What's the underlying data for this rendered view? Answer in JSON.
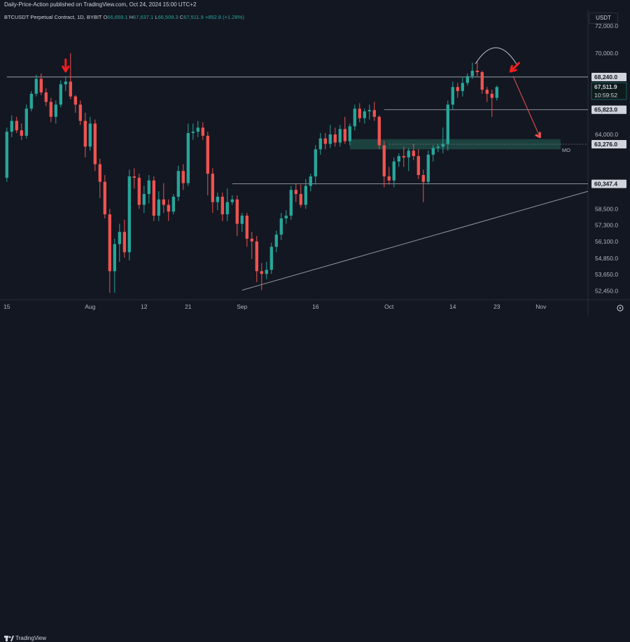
{
  "header": {
    "publisher": "Daily-Price-Action published on TradingView.com, Oct 24, 2024 15:00 UTC+2",
    "symbol": "BTCUSDT Perpetual Contract, 1D, BYBIT",
    "o_label": "O",
    "o_value": "66,659.1",
    "h_label": "H",
    "h_value": "67,637.1",
    "l_label": "L",
    "l_value": "66,509.3",
    "c_label": "C",
    "c_value": "67,511.9",
    "change": "+852.8 (+1.28%)",
    "currency": "USDT"
  },
  "footer": {
    "brand": "TradingView"
  },
  "colors": {
    "bull": "#26a69a",
    "bear": "#ef5350",
    "arrow": "#f21e1e",
    "level": "#b2b5be",
    "zone": "#1e4a44"
  },
  "chart_data": {
    "type": "candlestick",
    "interval": "1D",
    "ylim": [
      51800,
      73200
    ],
    "y_ticks": [
      {
        "value": 72000,
        "label": "72,000.0"
      },
      {
        "value": 70000,
        "label": "70,000.0"
      },
      {
        "value": 64000,
        "label": "64,000.0"
      },
      {
        "value": 58500,
        "label": "58,500.0"
      },
      {
        "value": 57300,
        "label": "57,300.0"
      },
      {
        "value": 56100,
        "label": "56,100.0"
      },
      {
        "value": 54850,
        "label": "54,850.0"
      },
      {
        "value": 53650,
        "label": "53,650.0"
      },
      {
        "value": 52450,
        "label": "52,450.0"
      }
    ],
    "x_ticks": [
      {
        "index": 0,
        "label": "15"
      },
      {
        "index": 17,
        "label": "Aug"
      },
      {
        "index": 28,
        "label": "12"
      },
      {
        "index": 37,
        "label": "21"
      },
      {
        "index": 48,
        "label": "Sep"
      },
      {
        "index": 63,
        "label": "16"
      },
      {
        "index": 78,
        "label": "Oct"
      },
      {
        "index": 91,
        "label": "14"
      },
      {
        "index": 100,
        "label": "23"
      },
      {
        "index": 109,
        "label": "Nov"
      }
    ],
    "x_range": [
      -1.4,
      118.6
    ],
    "candles": [
      [
        60800,
        64500,
        60500,
        64200
      ],
      [
        64200,
        65400,
        63800,
        65000
      ],
      [
        65000,
        65300,
        64100,
        64300
      ],
      [
        64300,
        64800,
        63600,
        63900
      ],
      [
        63900,
        66200,
        63700,
        65900
      ],
      [
        65900,
        67200,
        65700,
        67000
      ],
      [
        67000,
        68400,
        66800,
        68100
      ],
      [
        68100,
        68500,
        66900,
        67100
      ],
      [
        67100,
        67400,
        66100,
        66400
      ],
      [
        66400,
        66700,
        64900,
        65300
      ],
      [
        65300,
        66500,
        64800,
        66200
      ],
      [
        66200,
        68000,
        66000,
        67700
      ],
      [
        67700,
        68300,
        67200,
        67900
      ],
      [
        67900,
        70000,
        66600,
        66800
      ],
      [
        66800,
        66900,
        65600,
        66200
      ],
      [
        66200,
        66500,
        64700,
        65000
      ],
      [
        65000,
        65600,
        62300,
        63100
      ],
      [
        63100,
        65300,
        62800,
        64800
      ],
      [
        64800,
        65100,
        61300,
        61800
      ],
      [
        61800,
        62200,
        59300,
        60500
      ],
      [
        60500,
        61000,
        57800,
        58100
      ],
      [
        58100,
        58500,
        52300,
        53900
      ],
      [
        53900,
        56300,
        52300,
        55900
      ],
      [
        55900,
        57400,
        54600,
        56800
      ],
      [
        56800,
        57700,
        54900,
        55300
      ],
      [
        55300,
        61400,
        54700,
        60900
      ],
      [
        60900,
        61500,
        60000,
        60800
      ],
      [
        60800,
        61100,
        58500,
        58800
      ],
      [
        58800,
        60200,
        58200,
        59600
      ],
      [
        59600,
        61000,
        58900,
        60600
      ],
      [
        60600,
        60900,
        57600,
        58000
      ],
      [
        58000,
        59800,
        57600,
        59200
      ],
      [
        59200,
        60400,
        58200,
        58800
      ],
      [
        58800,
        59200,
        57600,
        58300
      ],
      [
        58300,
        59600,
        58100,
        59400
      ],
      [
        59400,
        61700,
        59100,
        61300
      ],
      [
        61300,
        61800,
        59900,
        60400
      ],
      [
        60400,
        64800,
        60200,
        64100
      ],
      [
        64100,
        64800,
        63600,
        64200
      ],
      [
        64200,
        65000,
        63800,
        64500
      ],
      [
        64500,
        64900,
        63600,
        63900
      ],
      [
        63900,
        64200,
        59500,
        61100
      ],
      [
        61100,
        61500,
        58200,
        59000
      ],
      [
        59000,
        59700,
        58400,
        59400
      ],
      [
        59400,
        59700,
        57600,
        58100
      ],
      [
        58100,
        60000,
        57600,
        59000
      ],
      [
        59000,
        59500,
        58800,
        59200
      ],
      [
        59200,
        59500,
        56500,
        57400
      ],
      [
        57400,
        58200,
        56800,
        58000
      ],
      [
        58000,
        58200,
        55700,
        56300
      ],
      [
        56300,
        56800,
        54800,
        56100
      ],
      [
        56100,
        56500,
        53100,
        53900
      ],
      [
        53900,
        54500,
        52500,
        53700
      ],
      [
        53700,
        54600,
        53300,
        54000
      ],
      [
        54000,
        56000,
        53700,
        55700
      ],
      [
        55700,
        56900,
        55300,
        56600
      ],
      [
        56600,
        58200,
        56200,
        57800
      ],
      [
        57800,
        58400,
        57400,
        58000
      ],
      [
        58000,
        60200,
        57700,
        59900
      ],
      [
        59900,
        60400,
        59000,
        59600
      ],
      [
        59600,
        60300,
        58600,
        58800
      ],
      [
        58800,
        60700,
        58500,
        60200
      ],
      [
        60200,
        61100,
        59800,
        60900
      ],
      [
        60900,
        63200,
        60300,
        62900
      ],
      [
        62900,
        64100,
        62500,
        63700
      ],
      [
        63700,
        64100,
        62900,
        63300
      ],
      [
        63300,
        64700,
        63000,
        64000
      ],
      [
        64000,
        64500,
        63100,
        63400
      ],
      [
        63400,
        64700,
        63100,
        64400
      ],
      [
        64400,
        65300,
        63300,
        63500
      ],
      [
        63500,
        64800,
        63200,
        64600
      ],
      [
        64600,
        66200,
        64300,
        65900
      ],
      [
        65900,
        66300,
        64900,
        65200
      ],
      [
        65200,
        65900,
        64800,
        65700
      ],
      [
        65700,
        66200,
        65100,
        65800
      ],
      [
        65800,
        66400,
        65000,
        65300
      ],
      [
        65300,
        65400,
        62900,
        63200
      ],
      [
        63200,
        63500,
        60100,
        60900
      ],
      [
        60900,
        61600,
        60300,
        60600
      ],
      [
        60600,
        62300,
        60100,
        62000
      ],
      [
        62000,
        62600,
        61600,
        62400
      ],
      [
        62400,
        63100,
        61600,
        62300
      ],
      [
        62300,
        63000,
        61300,
        62800
      ],
      [
        62800,
        63300,
        62100,
        62400
      ],
      [
        62400,
        62900,
        60700,
        61000
      ],
      [
        61000,
        61400,
        59000,
        60500
      ],
      [
        60500,
        62800,
        60300,
        62500
      ],
      [
        62500,
        63200,
        62000,
        63000
      ],
      [
        63000,
        63300,
        62700,
        63100
      ],
      [
        63100,
        64500,
        62600,
        63300
      ],
      [
        63300,
        66500,
        62800,
        66200
      ],
      [
        66200,
        67900,
        65800,
        67500
      ],
      [
        67500,
        67800,
        66700,
        67200
      ],
      [
        67200,
        68200,
        66800,
        67800
      ],
      [
        67800,
        68500,
        67600,
        68300
      ],
      [
        68300,
        69300,
        68100,
        68700
      ],
      [
        68700,
        69400,
        68300,
        68600
      ],
      [
        68600,
        68700,
        67000,
        67300
      ],
      [
        67300,
        67500,
        66400,
        67000
      ],
      [
        67000,
        67300,
        65300,
        66700
      ],
      [
        66700,
        67600,
        66500,
        67500
      ]
    ],
    "levels": [
      {
        "value": 68240,
        "label": "68,240.0"
      },
      {
        "value": 65823,
        "label": "65,823.0"
      },
      {
        "value": 60347.4,
        "label": "60,347.4"
      }
    ],
    "current_price": {
      "value": 67511.9,
      "label": "67,511.9",
      "countdown": "10:59:52"
    },
    "monthly_open": {
      "value": 63276,
      "label": "63,276.0",
      "tag": "MO"
    },
    "zone": {
      "top": 63650,
      "bottom": 62900,
      "start_index": 70,
      "end_index": 113
    },
    "trendline": {
      "start": [
        48,
        52500
      ],
      "end": [
        118.6,
        59800
      ]
    }
  }
}
